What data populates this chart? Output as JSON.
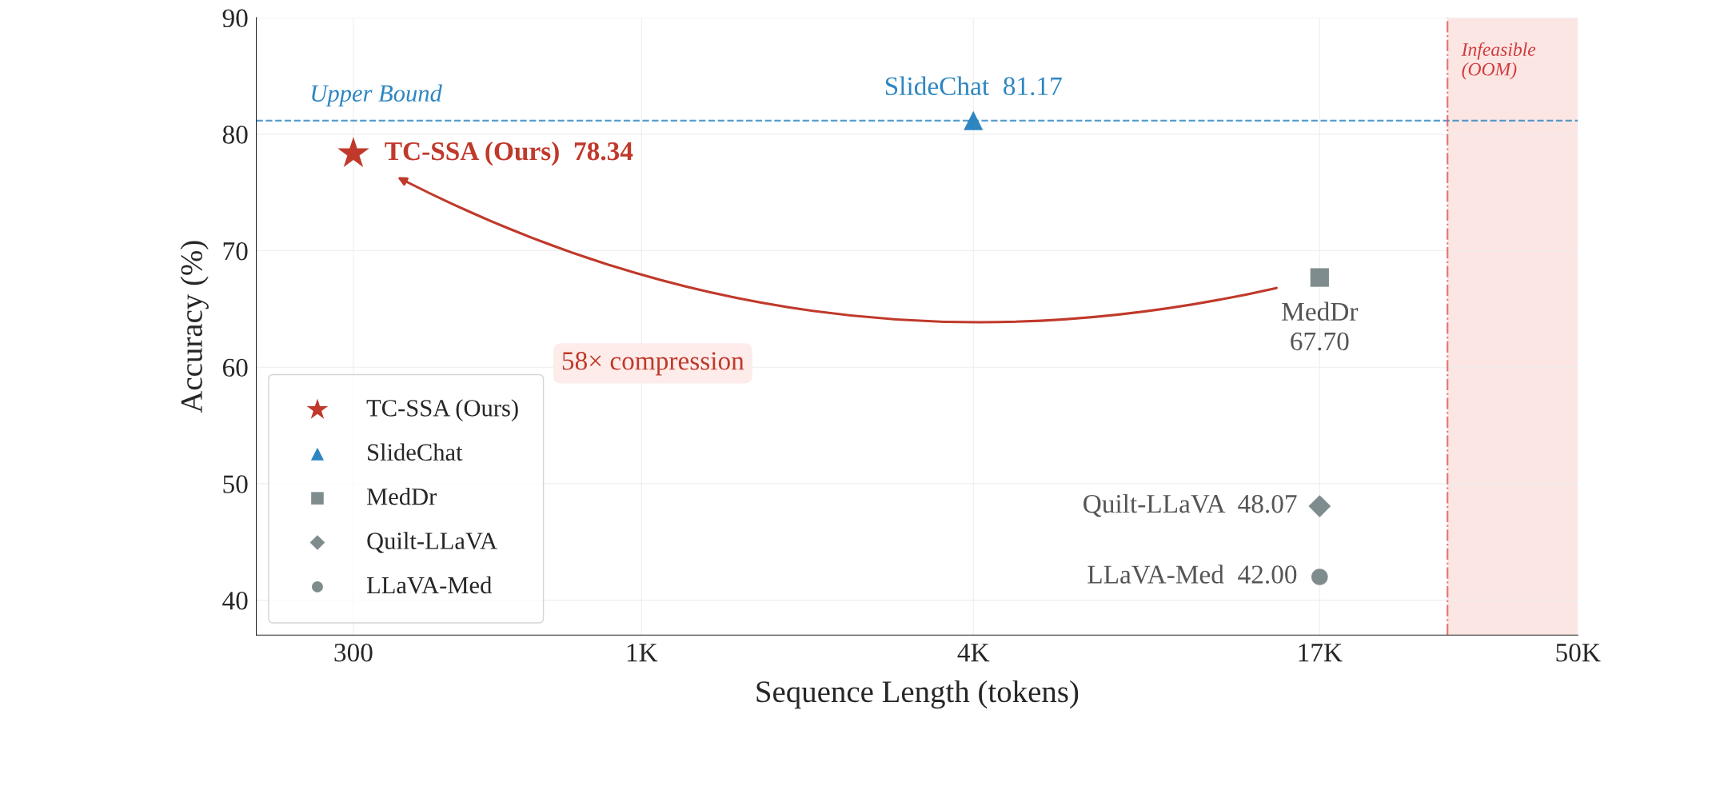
{
  "chart_data": {
    "type": "scatter",
    "xlabel": "Sequence Length (tokens)",
    "ylabel": "Accuracy (%)",
    "log": "x",
    "xlim": [
      200,
      50000
    ],
    "ylim": [
      37,
      90
    ],
    "xticks": [
      {
        "value": 300,
        "label": "300"
      },
      {
        "value": 1000,
        "label": "1K"
      },
      {
        "value": 4000,
        "label": "4K"
      },
      {
        "value": 17000,
        "label": "17K"
      },
      {
        "value": 50000,
        "label": "50K"
      }
    ],
    "yticks": [
      40,
      50,
      60,
      70,
      80,
      90
    ],
    "grid": true,
    "legend": "bottom left",
    "series": [
      {
        "name": "TC-SSA (Ours)",
        "color": "#c0392b",
        "marker": "star",
        "x": [
          300
        ],
        "values": [
          78.34
        ],
        "value_labels": [
          "78.34"
        ]
      },
      {
        "name": "SlideChat",
        "color": "#2e86c1",
        "marker": "triangle",
        "x": [
          4000
        ],
        "values": [
          81.17
        ],
        "value_labels": [
          "81.17"
        ]
      },
      {
        "name": "MedDr",
        "color": "#7f8c8d",
        "marker": "square",
        "x": [
          17000
        ],
        "values": [
          67.7
        ],
        "value_labels": [
          "67.70"
        ]
      },
      {
        "name": "Quilt-LLaVA",
        "color": "#7f8c8d",
        "marker": "diamond",
        "x": [
          17000
        ],
        "values": [
          48.07
        ],
        "value_labels": [
          "48.07"
        ]
      },
      {
        "name": "LLaVA-Med",
        "color": "#7f8c8d",
        "marker": "circle",
        "x": [
          17000
        ],
        "values": [
          42.0
        ],
        "value_labels": [
          "42.00"
        ]
      }
    ],
    "ref_lines": [
      {
        "axis": "y",
        "value": 81.17,
        "label": "Upper Bound",
        "color": "#2e86c1",
        "line_style": "dashed"
      },
      {
        "axis": "x",
        "value": 29000,
        "color": "#e05a5a",
        "line_style": "dashdot"
      }
    ],
    "bands": [
      {
        "axis": "x",
        "from": 29000,
        "to": 50000,
        "label": "Infeasible\n(OOM)",
        "color": "#fbe6e4"
      }
    ],
    "annotations": [
      "58× compression"
    ]
  }
}
